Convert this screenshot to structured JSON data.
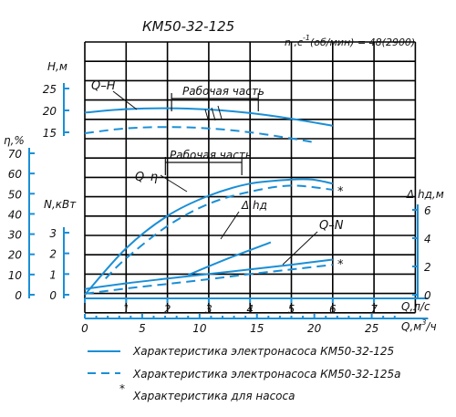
{
  "colors": {
    "curve": "#1a8fd6",
    "grid": "#000000",
    "text": "#111111"
  },
  "chart_data": {
    "type": "line",
    "title": "КМ50-32-125",
    "speed_label": "n ,c",
    "speed_exp": "-1",
    "speed_rest": "(об/мин) = 48(2900)",
    "grid": true,
    "x_axis": {
      "label": "Q,л/с",
      "range": [
        0,
        8
      ],
      "ticks": [
        "0",
        "1",
        "2",
        "3",
        "4",
        "5",
        "6",
        "7"
      ]
    },
    "x2_axis": {
      "label": "Q,м",
      "label_exp": "3",
      "label_rest": "/ч",
      "range": [
        0,
        28.8
      ],
      "ticks": [
        "0",
        "5",
        "10",
        "15",
        "20",
        "25"
      ]
    },
    "y_axes": {
      "H": {
        "label": "H,м",
        "ticks": [
          "15",
          "20",
          "25"
        ],
        "range": [
          15,
          25
        ]
      },
      "eta": {
        "label": "η,%",
        "ticks": [
          "0",
          "10",
          "20",
          "30",
          "40",
          "50",
          "60",
          "70"
        ],
        "range": [
          0,
          70
        ]
      },
      "N": {
        "label": "N,кВт",
        "ticks": [
          "0",
          "1",
          "2",
          "3"
        ],
        "range": [
          0,
          3
        ]
      },
      "NPSH": {
        "label": "Δ hд,м",
        "ticks": [
          "0",
          "2",
          "4",
          "6"
        ],
        "range": [
          0,
          6
        ]
      }
    },
    "curve_labels": {
      "QH": "Q–H",
      "QEta": "Q–η",
      "QN": "Q–N",
      "NPSH": "Δ hд",
      "star_eta": "*",
      "star_n": "*"
    },
    "work_zone_labels": {
      "top": "Рабочая часть",
      "bottom": "Рабочая часть"
    },
    "series": [
      {
        "key": "QH",
        "axis": "H",
        "style": "solid",
        "x": [
          0,
          1,
          2,
          3,
          4,
          5,
          6
        ],
        "y": [
          19.5,
          20.3,
          20.5,
          20.2,
          19.4,
          18.1,
          16.5
        ]
      },
      {
        "key": "QH",
        "axis": "H",
        "style": "dashed",
        "x": [
          0,
          1,
          2,
          3,
          4,
          5,
          5.5
        ],
        "y": [
          14.8,
          15.9,
          16.2,
          15.9,
          15.0,
          13.6,
          12.8
        ]
      },
      {
        "key": "QEta",
        "axis": "eta",
        "style": "solid",
        "x": [
          0,
          1,
          2,
          3,
          4,
          5,
          5.5,
          6
        ],
        "y": [
          0,
          23,
          39,
          49,
          55,
          57,
          57,
          55
        ]
      },
      {
        "key": "QEta",
        "axis": "eta",
        "style": "dashed",
        "x": [
          0.5,
          1,
          2,
          3,
          4,
          5,
          6
        ],
        "y": [
          8,
          18,
          34,
          45,
          51,
          54,
          52
        ]
      },
      {
        "key": "QN",
        "axis": "N",
        "style": "solid",
        "x": [
          0,
          1,
          2,
          3,
          4,
          5,
          6
        ],
        "y": [
          0.28,
          0.55,
          0.78,
          1.0,
          1.22,
          1.45,
          1.7
        ]
      },
      {
        "key": "QN",
        "axis": "N",
        "style": "dashed",
        "x": [
          0,
          1,
          2,
          3,
          4,
          5,
          6
        ],
        "y": [
          0.05,
          0.3,
          0.52,
          0.75,
          1.0,
          1.22,
          1.45
        ]
      },
      {
        "key": "NPSH",
        "axis": "NPSH",
        "style": "solid",
        "x": [
          2.5,
          3.5,
          4.5
        ],
        "y": [
          1.4,
          2.6,
          3.7
        ]
      }
    ],
    "legend": [
      {
        "style": "solid",
        "text": "Характеристика электронасоса КМ50-32-125"
      },
      {
        "style": "dashed",
        "text": "Характеристика электронасоса КМ50-32-125а"
      },
      {
        "style": "star",
        "text": "Характеристика для насоса"
      }
    ]
  }
}
